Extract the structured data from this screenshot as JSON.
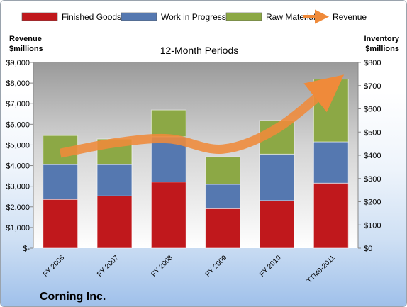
{
  "chart_data": {
    "type": "bar",
    "title": "12-Month Periods",
    "company": "Corning Inc.",
    "categories": [
      "FY 2006",
      "FY 2007",
      "FY 2008",
      "FY 2009",
      "FY 2010",
      "TTM9-2011"
    ],
    "series": [
      {
        "name": "Finished Goods",
        "values": [
          210,
          225,
          285,
          170,
          205,
          280
        ],
        "color": "#c0181c",
        "axis": "right"
      },
      {
        "name": "Work in Progress",
        "values": [
          150,
          135,
          195,
          105,
          200,
          178
        ],
        "color": "#5578b0",
        "axis": "right"
      },
      {
        "name": "Raw Materials",
        "values": [
          125,
          110,
          115,
          118,
          145,
          270
        ],
        "color": "#8ca845",
        "axis": "right"
      }
    ],
    "line_series": {
      "name": "Revenue",
      "values": [
        4600,
        5100,
        5300,
        4800,
        5800,
        7900
      ],
      "color": "#ef8a3a",
      "axis": "left"
    },
    "left_axis": {
      "title_line1": "Revenue",
      "title_line2": "$millions",
      "ylim": [
        0,
        9000
      ],
      "ticks": [
        0,
        1000,
        2000,
        3000,
        4000,
        5000,
        6000,
        7000,
        8000,
        9000
      ],
      "tick_labels": [
        "$-",
        "$1,000",
        "$2,000",
        "$3,000",
        "$4,000",
        "$5,000",
        "$6,000",
        "$7,000",
        "$8,000",
        "$9,000"
      ]
    },
    "right_axis": {
      "title_line1": "Inventory",
      "title_line2": "$millions",
      "ylim": [
        0,
        800
      ],
      "ticks": [
        0,
        100,
        200,
        300,
        400,
        500,
        600,
        700,
        800
      ],
      "tick_labels": [
        "$0",
        "$100",
        "$200",
        "$300",
        "$400",
        "$500",
        "$600",
        "$700",
        "$800"
      ]
    },
    "legend_position": "top",
    "grid": false
  }
}
